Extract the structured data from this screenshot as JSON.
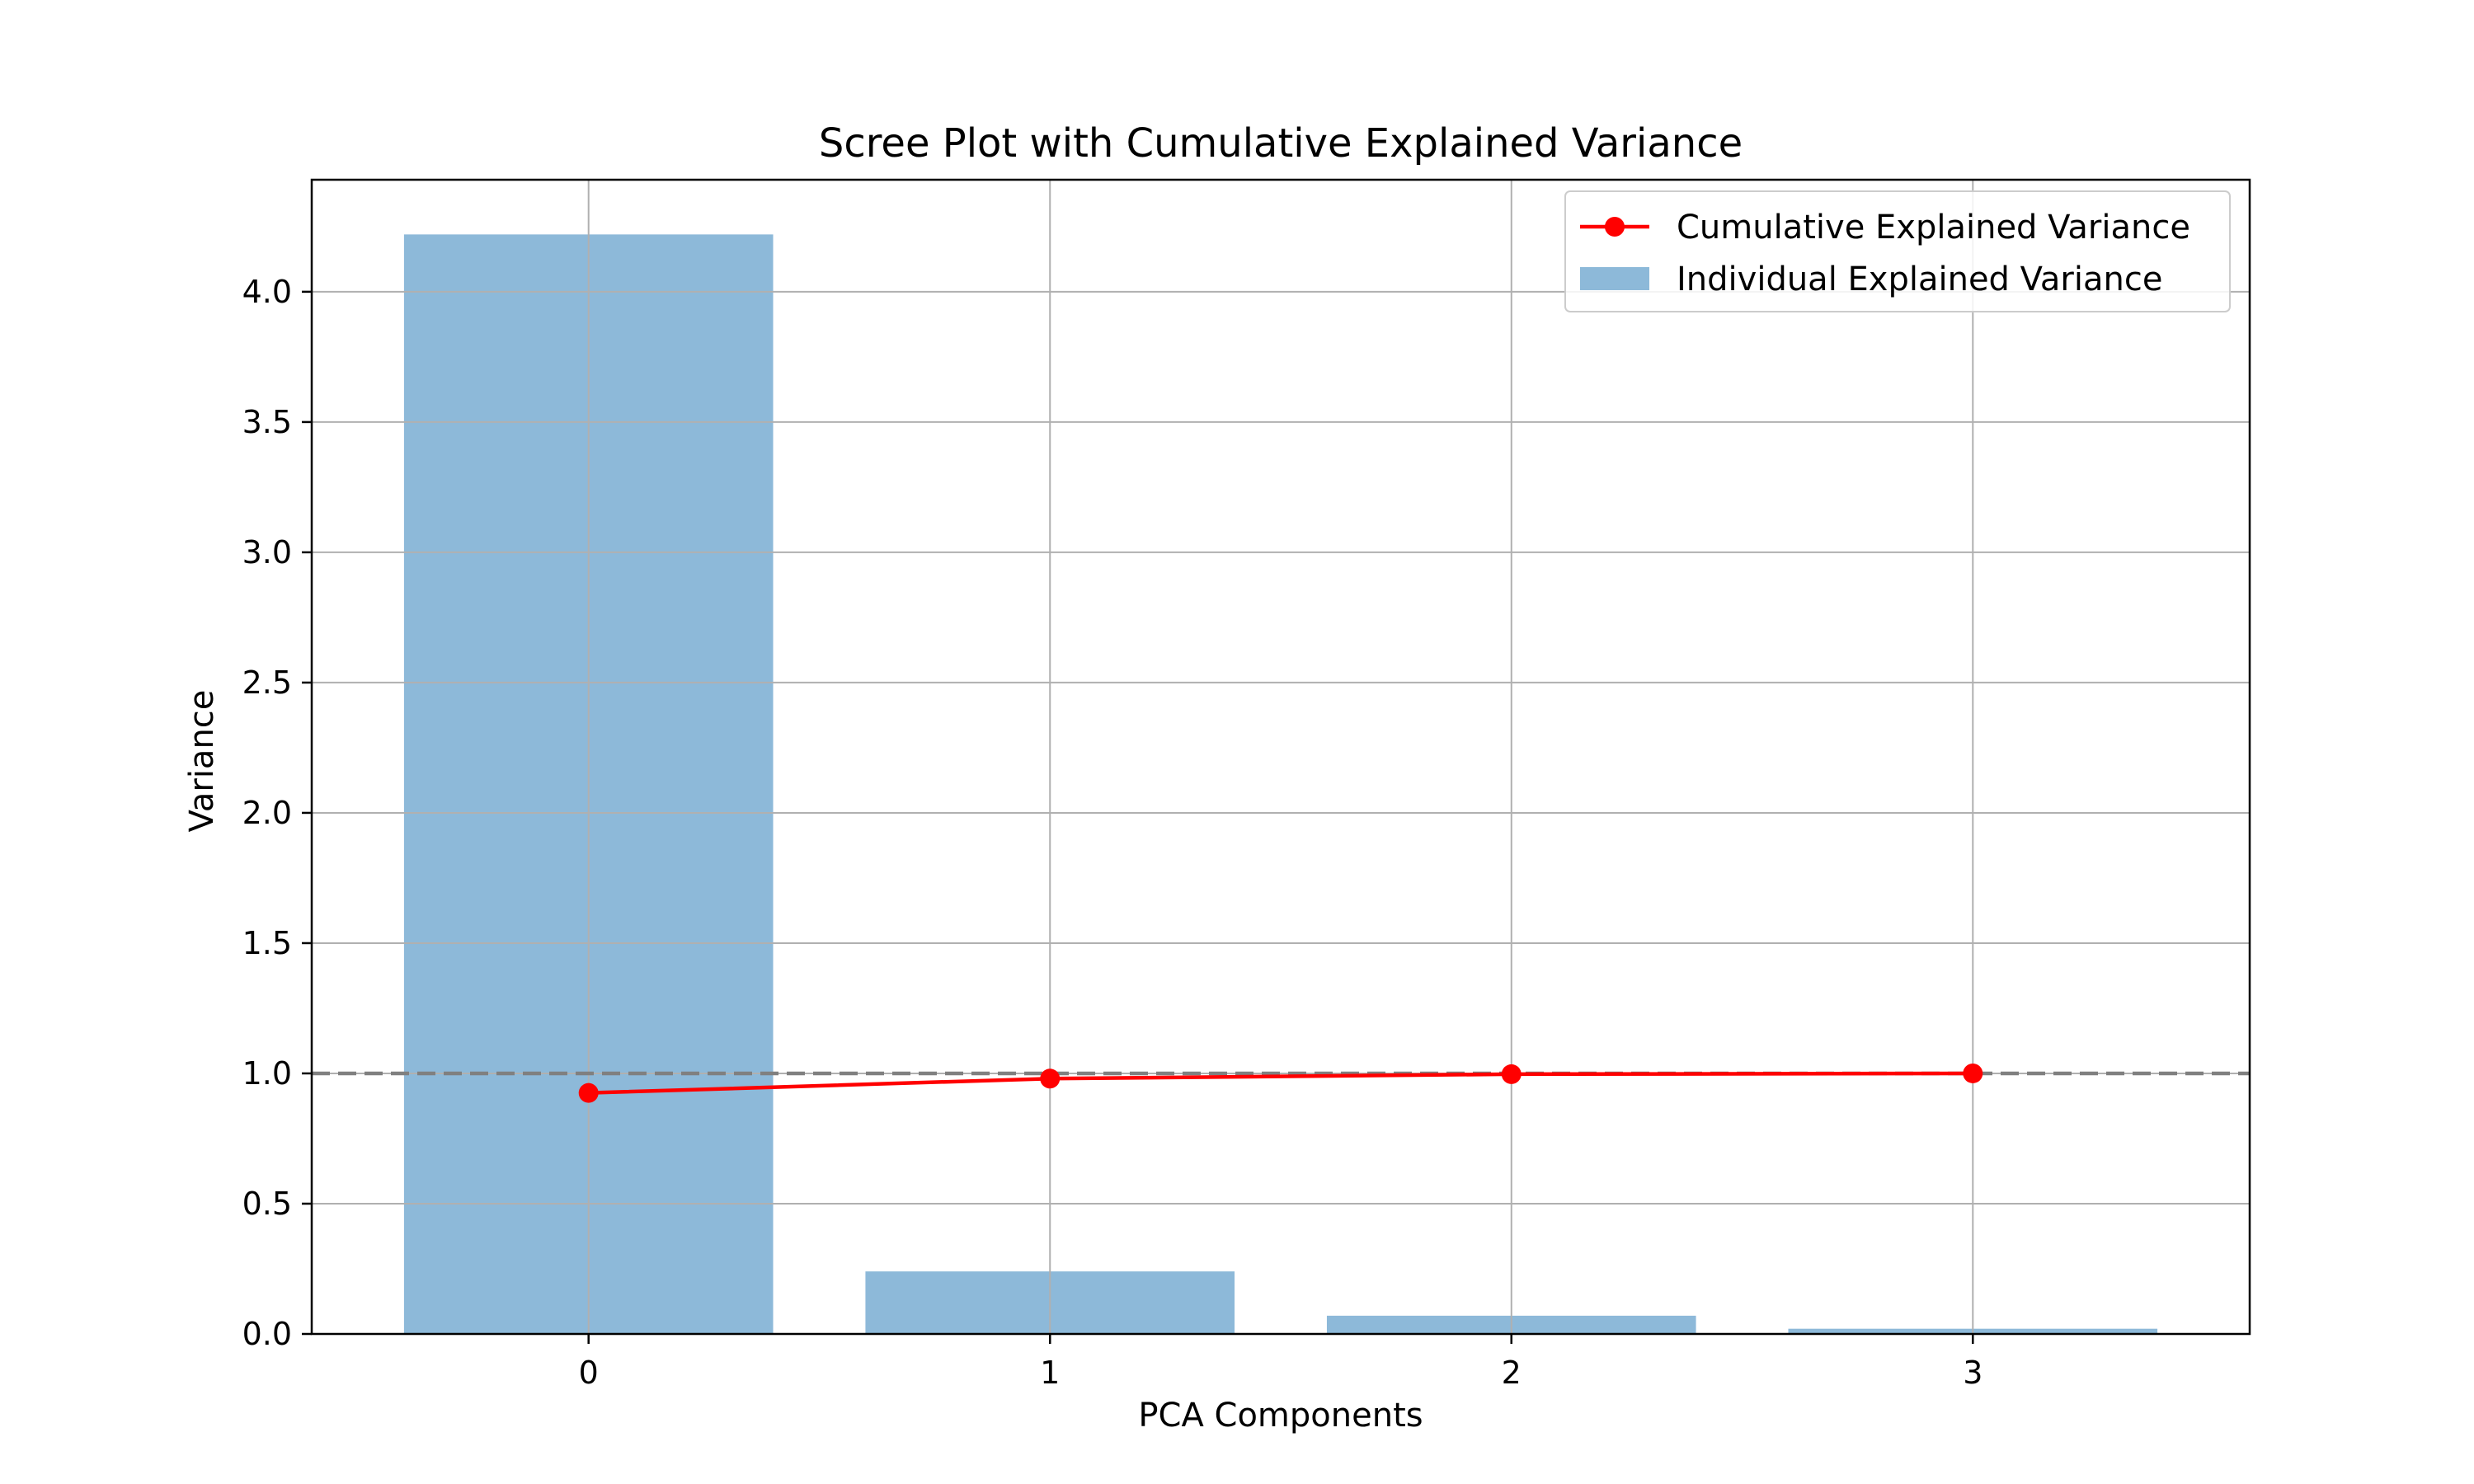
{
  "chart_data": {
    "type": "bar",
    "title": "Scree Plot with Cumulative Explained Variance",
    "xlabel": "PCA Components",
    "ylabel": "Variance",
    "categories": [
      "0",
      "1",
      "2",
      "3"
    ],
    "x": [
      0,
      1,
      2,
      3
    ],
    "xlim": [
      -0.6,
      3.6
    ],
    "ylim": [
      0,
      4.43
    ],
    "yticks": [
      "0.0",
      "0.5",
      "1.0",
      "1.5",
      "2.0",
      "2.5",
      "3.0",
      "3.5",
      "4.0"
    ],
    "ytick_values": [
      0,
      0.5,
      1.0,
      1.5,
      2.0,
      2.5,
      3.0,
      3.5,
      4.0
    ],
    "grid": true,
    "legend_position": "top-right",
    "series": [
      {
        "name": "Individual Explained Variance",
        "kind": "bar",
        "values": [
          4.22,
          0.24,
          0.07,
          0.02
        ],
        "color": "#8db9d9"
      },
      {
        "name": "Cumulative Explained Variance",
        "kind": "line",
        "marker": "circle",
        "values": [
          0.925,
          0.98,
          0.997,
          1.0
        ],
        "color": "#ff0000"
      }
    ],
    "reference_line": {
      "y": 1.0,
      "style": "dashed",
      "color": "#808080"
    },
    "legend": [
      "Cumulative Explained Variance",
      "Individual Explained Variance"
    ]
  }
}
